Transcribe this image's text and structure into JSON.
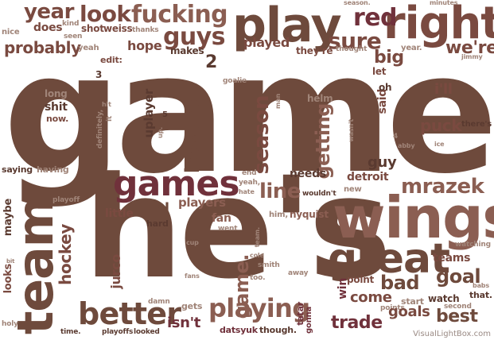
{
  "watermark": "VisualLightBox.com",
  "words": [
    "game",
    "he's",
    "wings",
    "team",
    "play",
    "right",
    "great",
    "games",
    "better",
    "playing",
    "year",
    "look",
    "fucking",
    "red",
    "guys",
    "sure",
    "played",
    "probably",
    "hope",
    "makes",
    "2",
    "we're",
    "big",
    "let",
    "does",
    "nice",
    "kind",
    "shot",
    "weiss",
    "thanks",
    "seen",
    "yeah",
    "edit:",
    "season.",
    "minutes",
    "jimmy",
    "year.",
    "they're",
    "thought",
    "3",
    "long",
    "shit",
    "now.",
    "hit",
    "definitely,",
    "it",
    "uplayer",
    "up.",
    "howard",
    "5",
    "getting",
    "season",
    "man",
    "helm",
    "said",
    "oh",
    "i'll",
    "puck",
    "there's",
    "ice",
    "4",
    "abby",
    "goalie",
    "wasn't",
    "saying",
    "having",
    "line",
    "mrazek",
    "guy",
    "detroit",
    "needs",
    "end",
    "yeah,",
    "hate",
    "him,",
    "nyquist",
    "new",
    "wouldn't",
    "nhl",
    "little",
    "players",
    "fan",
    "went",
    "playoff",
    "maybe",
    "hockey",
    "hard",
    "team.",
    "cole",
    "smith",
    "too.",
    "away",
    "cup",
    "fans",
    "jurco",
    "game.",
    "win",
    "point",
    "come",
    "bad",
    "goal",
    "teams",
    "watching",
    "watch",
    "start",
    "points",
    "babs",
    "that.",
    "second",
    "looks",
    "bit",
    "gets",
    "damn",
    "isn't",
    "datsyuk",
    "though.",
    "tatar",
    "gonna",
    "trade",
    "goals",
    "best",
    "holy",
    "time.",
    "playoffs",
    "looked"
  ]
}
